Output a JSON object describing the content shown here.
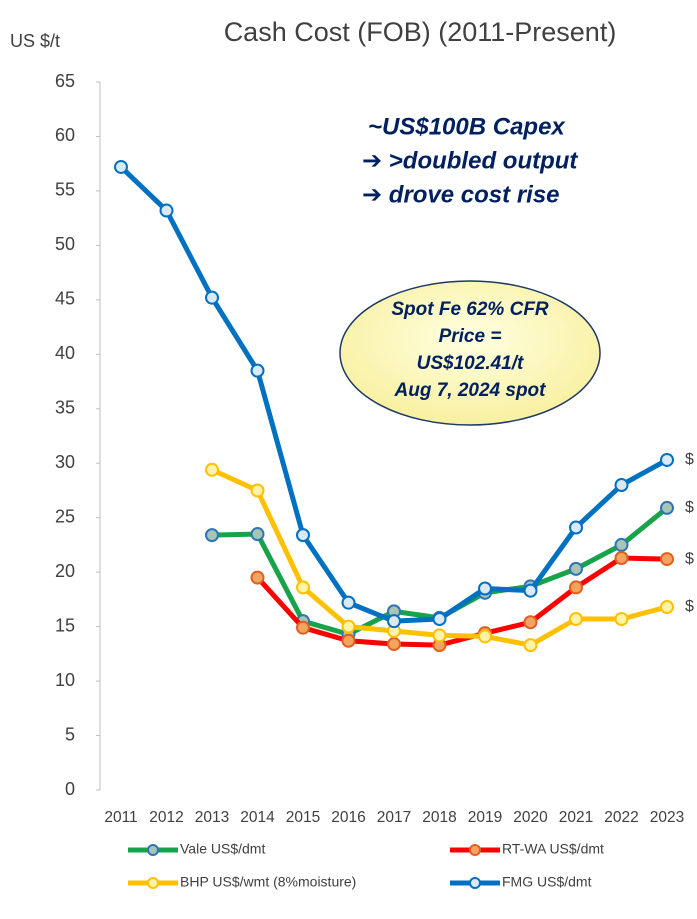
{
  "chart_data": {
    "type": "line",
    "title": "Cash Cost (FOB) (2011-Present)",
    "y_label": "US $/t",
    "categories": [
      "2011",
      "2012",
      "2013",
      "2014",
      "2015",
      "2016",
      "2017",
      "2018",
      "2019",
      "2020",
      "2021",
      "2022",
      "2023"
    ],
    "ylim": [
      0,
      65
    ],
    "yticks": [
      0,
      5,
      10,
      15,
      20,
      25,
      30,
      35,
      40,
      45,
      50,
      55,
      60,
      65
    ],
    "grid": false,
    "series": [
      {
        "name": "Vale US$/dmt",
        "color": "#16a34a",
        "marker_fill": "#a7c4b4",
        "marker_stroke": "#2e75b6",
        "end_label": "$",
        "values": [
          null,
          null,
          23.4,
          23.5,
          15.5,
          14.3,
          16.4,
          15.8,
          18.1,
          18.7,
          20.3,
          22.5,
          25.9
        ]
      },
      {
        "name": "RT-WA US$/dmt",
        "color": "#ff0000",
        "marker_fill": "#f4a460",
        "marker_stroke": "#e06020",
        "end_label": "$",
        "values": [
          null,
          null,
          null,
          19.5,
          14.9,
          13.7,
          13.4,
          13.3,
          14.4,
          15.4,
          18.6,
          21.3,
          21.2
        ]
      },
      {
        "name": "BHP US$/wmt (8%moisture)",
        "color": "#ffc000",
        "marker_fill": "#fff3a8",
        "marker_stroke": "#ffc000",
        "end_label": "$",
        "values": [
          null,
          null,
          29.4,
          27.5,
          18.6,
          15.0,
          14.6,
          14.2,
          14.1,
          13.3,
          15.7,
          15.7,
          16.8
        ]
      },
      {
        "name": "FMG US$/dmt",
        "color": "#0070c0",
        "marker_fill": "#dbe9f6",
        "marker_stroke": "#0070c0",
        "end_label": "$",
        "values": [
          57.2,
          53.2,
          45.2,
          38.5,
          23.4,
          17.2,
          15.5,
          15.7,
          18.5,
          18.3,
          24.1,
          28.0,
          30.3
        ]
      }
    ],
    "annotation": [
      "~US$100B Capex",
      "➔  >doubled output",
      "➔  drove cost rise"
    ],
    "callout": [
      "Spot Fe 62%  CFR",
      "Price =",
      "US$102.41/t",
      "Aug 7, 2024 spot"
    ]
  }
}
